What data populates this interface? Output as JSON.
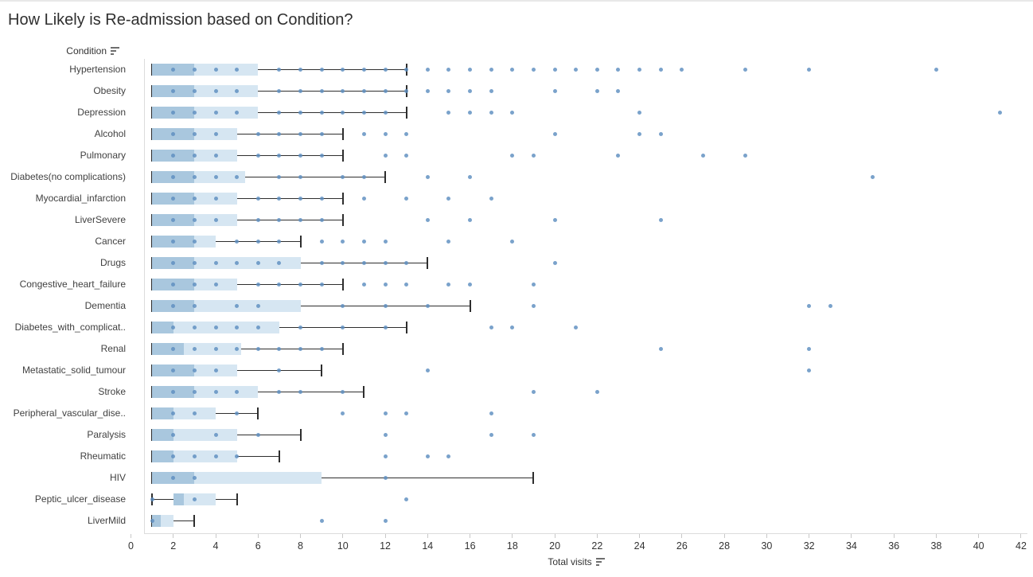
{
  "colors": {
    "box_dark": "#a9c7de",
    "box_light": "#d6e6f2",
    "dot": "#5d8ebf",
    "whisker": "#2e2e2e",
    "pane_line": "#dcdcdc",
    "tick": "#c8c8c8",
    "title": "#2f2f2f",
    "label": "#414141",
    "tick_label": "#333333",
    "icon": "#6e6e6e"
  },
  "chart_data": {
    "type": "horizontal-box-plot-with-dots",
    "title": "How Likely is Re-admission based on Condition?",
    "row_header": {
      "label": "Condition",
      "icon": "sort-descending-icon"
    },
    "x_axis": {
      "label": "Total visits",
      "icon": "sort-descending-icon",
      "min": 0,
      "max": 42,
      "ticks": [
        0,
        2,
        4,
        6,
        8,
        10,
        12,
        14,
        16,
        18,
        20,
        22,
        24,
        26,
        28,
        30,
        32,
        34,
        36,
        38,
        40,
        42
      ]
    },
    "legend": "none",
    "grid": "off",
    "rows": [
      {
        "label": "Hypertension",
        "min": 1,
        "q1": 1,
        "median": 3,
        "q3": 6,
        "max": 13,
        "box_dots": [
          2,
          3,
          4,
          5
        ],
        "line_dots": [
          7,
          8,
          9,
          10,
          11,
          12,
          13
        ],
        "outliers": [
          14,
          15,
          16,
          17,
          18,
          19,
          20,
          21,
          22,
          23,
          24,
          25,
          26,
          29,
          32,
          38
        ]
      },
      {
        "label": "Obesity",
        "min": 1,
        "q1": 1,
        "median": 3,
        "q3": 6,
        "max": 13,
        "box_dots": [
          2,
          3,
          4,
          5
        ],
        "line_dots": [
          7,
          8,
          9,
          10,
          11,
          12,
          13
        ],
        "outliers": [
          14,
          15,
          16,
          17,
          20,
          22,
          23
        ]
      },
      {
        "label": "Depression",
        "min": 1,
        "q1": 1,
        "median": 3,
        "q3": 6,
        "max": 13,
        "box_dots": [
          2,
          3,
          4,
          5
        ],
        "line_dots": [
          7,
          8,
          9,
          10,
          11,
          12
        ],
        "outliers": [
          15,
          16,
          17,
          18,
          24,
          41
        ]
      },
      {
        "label": "Alcohol",
        "min": 1,
        "q1": 1,
        "median": 3,
        "q3": 5,
        "max": 10,
        "box_dots": [
          2,
          3,
          4
        ],
        "line_dots": [
          6,
          7,
          8,
          9
        ],
        "outliers": [
          11,
          12,
          13,
          20,
          24,
          25
        ]
      },
      {
        "label": "Pulmonary",
        "min": 1,
        "q1": 1,
        "median": 3,
        "q3": 5,
        "max": 10,
        "box_dots": [
          2,
          3,
          4
        ],
        "line_dots": [
          6,
          7,
          8,
          9
        ],
        "outliers": [
          12,
          13,
          18,
          19,
          23,
          27,
          29
        ]
      },
      {
        "label": "Diabetes(no complications)",
        "min": 1,
        "q1": 1,
        "median": 3,
        "q3": 5.4,
        "max": 12,
        "box_dots": [
          2,
          3,
          4,
          5
        ],
        "line_dots": [
          7,
          8,
          10,
          11
        ],
        "outliers": [
          14,
          16,
          35
        ]
      },
      {
        "label": "Myocardial_infarction",
        "min": 1,
        "q1": 1,
        "median": 3,
        "q3": 5,
        "max": 10,
        "box_dots": [
          2,
          3,
          4
        ],
        "line_dots": [
          6,
          7,
          8,
          9
        ],
        "outliers": [
          11,
          13,
          15,
          17
        ]
      },
      {
        "label": "LiverSevere",
        "min": 1,
        "q1": 1,
        "median": 3,
        "q3": 5,
        "max": 10,
        "box_dots": [
          2,
          3,
          4
        ],
        "line_dots": [
          6,
          7,
          8,
          9
        ],
        "outliers": [
          14,
          16,
          20,
          25
        ]
      },
      {
        "label": "Cancer",
        "min": 1,
        "q1": 1,
        "median": 3,
        "q3": 4,
        "max": 8,
        "box_dots": [
          2,
          3
        ],
        "line_dots": [
          5,
          6,
          7
        ],
        "outliers": [
          9,
          10,
          11,
          12,
          15,
          18
        ]
      },
      {
        "label": "Drugs",
        "min": 1,
        "q1": 1,
        "median": 3,
        "q3": 8,
        "max": 14,
        "box_dots": [
          2,
          3,
          4,
          5,
          6,
          7
        ],
        "line_dots": [
          9,
          10,
          11,
          12,
          13
        ],
        "outliers": [
          20
        ]
      },
      {
        "label": "Congestive_heart_failure",
        "min": 1,
        "q1": 1,
        "median": 3,
        "q3": 5,
        "max": 10,
        "box_dots": [
          2,
          3,
          4
        ],
        "line_dots": [
          6,
          7,
          8,
          9
        ],
        "outliers": [
          11,
          12,
          13,
          15,
          16,
          19
        ]
      },
      {
        "label": "Dementia",
        "min": 1,
        "q1": 1,
        "median": 3,
        "q3": 8,
        "max": 16,
        "box_dots": [
          2,
          3,
          5,
          6
        ],
        "line_dots": [
          10,
          12,
          14
        ],
        "outliers": [
          19,
          32,
          33
        ]
      },
      {
        "label": "Diabetes_with_complicat..",
        "min": 1,
        "q1": 1,
        "median": 2,
        "q3": 7,
        "max": 13,
        "box_dots": [
          2,
          3,
          4,
          5,
          6
        ],
        "line_dots": [
          8,
          10,
          12
        ],
        "outliers": [
          17,
          18,
          21
        ]
      },
      {
        "label": "Renal",
        "min": 1,
        "q1": 1,
        "median": 2.5,
        "q3": 5.2,
        "max": 10,
        "box_dots": [
          2,
          3,
          4,
          5
        ],
        "line_dots": [
          6,
          7,
          8,
          9
        ],
        "outliers": [
          25,
          32
        ]
      },
      {
        "label": "Metastatic_solid_tumour",
        "min": 1,
        "q1": 1,
        "median": 3,
        "q3": 5,
        "max": 9,
        "box_dots": [
          2,
          3,
          4
        ],
        "line_dots": [
          7
        ],
        "outliers": [
          14,
          32
        ]
      },
      {
        "label": "Stroke",
        "min": 1,
        "q1": 1,
        "median": 3,
        "q3": 6,
        "max": 11,
        "box_dots": [
          2,
          3,
          4,
          5
        ],
        "line_dots": [
          7,
          8,
          10
        ],
        "outliers": [
          19,
          22
        ]
      },
      {
        "label": "Peripheral_vascular_dise..",
        "min": 1,
        "q1": 1,
        "median": 2,
        "q3": 4,
        "max": 6,
        "box_dots": [
          2,
          3
        ],
        "line_dots": [
          5
        ],
        "outliers": [
          10,
          12,
          13,
          17
        ]
      },
      {
        "label": "Paralysis",
        "min": 1,
        "q1": 1,
        "median": 2,
        "q3": 5,
        "max": 8,
        "box_dots": [
          2,
          4
        ],
        "line_dots": [
          6
        ],
        "outliers": [
          12,
          17,
          19
        ]
      },
      {
        "label": "Rheumatic",
        "min": 1,
        "q1": 1,
        "median": 2,
        "q3": 5,
        "max": 7,
        "box_dots": [
          2,
          3,
          4,
          5
        ],
        "line_dots": [],
        "outliers": [
          12,
          14,
          15
        ]
      },
      {
        "label": "HIV",
        "min": 1,
        "q1": 1,
        "median": 3,
        "q3": 9,
        "max": 19,
        "box_dots": [
          2,
          3
        ],
        "line_dots": [
          12
        ],
        "outliers": []
      },
      {
        "label": "Peptic_ulcer_disease",
        "min": 1,
        "q1": 2,
        "median": 2.5,
        "q3": 4,
        "max": 5,
        "box_dots": [
          1,
          3
        ],
        "line_dots": [],
        "outliers": [
          13
        ]
      },
      {
        "label": "LiverMild",
        "min": 1,
        "q1": 1,
        "median": 1.4,
        "q3": 2,
        "max": 3,
        "box_dots": [
          1
        ],
        "line_dots": [],
        "outliers": [
          9,
          12
        ]
      }
    ]
  }
}
